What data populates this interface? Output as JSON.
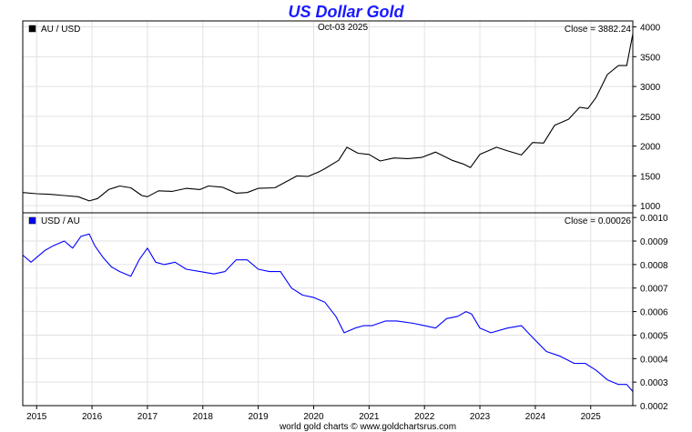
{
  "chart_data": {
    "type": "line",
    "title": "US Dollar Gold",
    "date_label": "Oct-03  2025",
    "footer": "world gold charts © www.goldchartsrus.com",
    "x_tick_labels": [
      "2015",
      "2016",
      "2017",
      "2018",
      "2019",
      "2020",
      "2021",
      "2022",
      "2023",
      "2024",
      "2025"
    ],
    "x_range": [
      2014.75,
      2025.76
    ],
    "grid": true,
    "panels": [
      {
        "legend": "AU / USD",
        "legend_color": "#000000",
        "close_text": "Close = 3882.24",
        "line_color": "#000000",
        "ylim": [
          880,
          4100
        ],
        "y_tick_labels": [
          "1000",
          "1500",
          "2000",
          "2500",
          "3000",
          "3500",
          "4000"
        ],
        "y_ticks": [
          1000,
          1500,
          2000,
          2500,
          3000,
          3500,
          4000
        ],
        "series": {
          "x": [
            2014.75,
            2015.0,
            2015.25,
            2015.5,
            2015.75,
            2015.95,
            2016.1,
            2016.3,
            2016.5,
            2016.7,
            2016.9,
            2017.0,
            2017.2,
            2017.45,
            2017.7,
            2017.95,
            2018.1,
            2018.35,
            2018.6,
            2018.8,
            2019.0,
            2019.3,
            2019.5,
            2019.7,
            2019.9,
            2020.1,
            2020.2,
            2020.45,
            2020.6,
            2020.8,
            2021.0,
            2021.2,
            2021.45,
            2021.7,
            2021.95,
            2022.2,
            2022.5,
            2022.7,
            2022.83,
            2023.0,
            2023.3,
            2023.5,
            2023.75,
            2023.95,
            2024.15,
            2024.35,
            2024.6,
            2024.8,
            2024.95,
            2025.1,
            2025.3,
            2025.5,
            2025.65,
            2025.76
          ],
          "y": [
            1220,
            1200,
            1190,
            1170,
            1150,
            1080,
            1120,
            1270,
            1330,
            1300,
            1170,
            1150,
            1250,
            1240,
            1290,
            1270,
            1330,
            1310,
            1210,
            1220,
            1290,
            1300,
            1400,
            1500,
            1490,
            1570,
            1620,
            1760,
            1980,
            1880,
            1860,
            1750,
            1800,
            1790,
            1810,
            1900,
            1760,
            1700,
            1640,
            1860,
            1980,
            1920,
            1850,
            2060,
            2050,
            2350,
            2450,
            2650,
            2630,
            2820,
            3200,
            3350,
            3350,
            3882
          ]
        }
      },
      {
        "legend": "USD / AU",
        "legend_color": "#0000ff",
        "close_text": "Close = 0.00026",
        "line_color": "#0000ff",
        "ylim": [
          0.0002,
          0.00102
        ],
        "y_tick_labels": [
          "0.0002",
          "0.0003",
          "0.0004",
          "0.0005",
          "0.0006",
          "0.0007",
          "0.0008",
          "0.0009",
          "0.0010"
        ],
        "y_ticks": [
          0.0002,
          0.0003,
          0.0004,
          0.0005,
          0.0006,
          0.0007,
          0.0008,
          0.0009,
          0.001
        ],
        "series": {
          "x": [
            2014.75,
            2014.9,
            2015.0,
            2015.15,
            2015.3,
            2015.5,
            2015.65,
            2015.8,
            2015.95,
            2016.05,
            2016.2,
            2016.35,
            2016.5,
            2016.7,
            2016.85,
            2017.0,
            2017.15,
            2017.3,
            2017.5,
            2017.7,
            2017.95,
            2018.2,
            2018.4,
            2018.6,
            2018.8,
            2019.0,
            2019.2,
            2019.4,
            2019.6,
            2019.8,
            2020.0,
            2020.2,
            2020.4,
            2020.55,
            2020.75,
            2020.9,
            2021.05,
            2021.3,
            2021.5,
            2021.8,
            2022.0,
            2022.2,
            2022.4,
            2022.6,
            2022.75,
            2022.85,
            2023.0,
            2023.2,
            2023.5,
            2023.75,
            2023.95,
            2024.2,
            2024.45,
            2024.7,
            2024.9,
            2025.1,
            2025.3,
            2025.5,
            2025.65,
            2025.76
          ],
          "y": [
            0.00084,
            0.00081,
            0.00083,
            0.00086,
            0.00088,
            0.0009,
            0.00087,
            0.00092,
            0.00093,
            0.00088,
            0.00083,
            0.00079,
            0.00077,
            0.00075,
            0.00082,
            0.00087,
            0.00081,
            0.0008,
            0.00081,
            0.00078,
            0.00077,
            0.00076,
            0.00077,
            0.00082,
            0.00082,
            0.00078,
            0.00077,
            0.00077,
            0.0007,
            0.00067,
            0.00066,
            0.00064,
            0.00058,
            0.00051,
            0.00053,
            0.00054,
            0.00054,
            0.00056,
            0.00056,
            0.00055,
            0.00054,
            0.00053,
            0.00057,
            0.00058,
            0.0006,
            0.00059,
            0.00053,
            0.00051,
            0.00053,
            0.00054,
            0.00049,
            0.00043,
            0.00041,
            0.00038,
            0.00038,
            0.00035,
            0.00031,
            0.00029,
            0.00029,
            0.00026
          ]
        }
      }
    ]
  }
}
